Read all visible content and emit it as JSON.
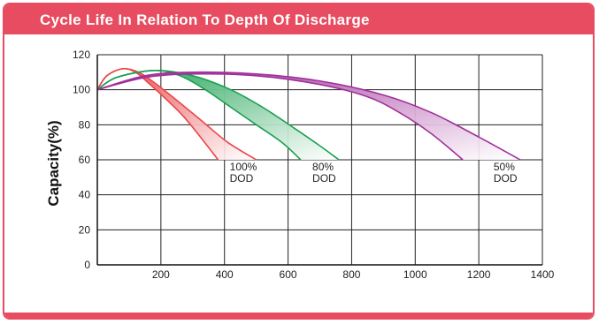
{
  "header": {
    "title": "Cycle Life In Relation To Depth Of Discharge"
  },
  "colors": {
    "accent": "#e74c60",
    "red": "#e8464a",
    "green": "#1aa050",
    "purple": "#a0309a"
  },
  "chart_data": {
    "type": "line",
    "title": "Cycle Life In Relation To Depth Of Discharge",
    "xlabel": "",
    "ylabel": "Capacity(%)",
    "xlim": [
      0,
      1400
    ],
    "ylim": [
      0,
      120
    ],
    "xticks": [
      "200",
      "400",
      "600",
      "800",
      "1000",
      "1200",
      "1400"
    ],
    "yticks": [
      "0",
      "20",
      "40",
      "60",
      "80",
      "100",
      "120"
    ],
    "grid": true,
    "series": [
      {
        "name": "100% DOD",
        "label_lines": [
          "100%",
          "DOD"
        ],
        "color": "#e8464a",
        "upper": [
          [
            0,
            100
          ],
          [
            30,
            108
          ],
          [
            80,
            112
          ],
          [
            130,
            110
          ],
          [
            180,
            104
          ],
          [
            250,
            94
          ],
          [
            330,
            82
          ],
          [
            410,
            70
          ],
          [
            500,
            60
          ]
        ],
        "lower": [
          [
            0,
            100
          ],
          [
            30,
            108
          ],
          [
            80,
            112
          ],
          [
            120,
            110
          ],
          [
            160,
            104
          ],
          [
            220,
            94
          ],
          [
            270,
            85
          ],
          [
            320,
            74
          ],
          [
            380,
            60
          ]
        ]
      },
      {
        "name": "80% DOD",
        "label_lines": [
          "80%",
          "DOD"
        ],
        "color": "#1aa050",
        "upper": [
          [
            0,
            100
          ],
          [
            60,
            107
          ],
          [
            180,
            111
          ],
          [
            300,
            108
          ],
          [
            420,
            100
          ],
          [
            520,
            90
          ],
          [
            620,
            78
          ],
          [
            700,
            68
          ],
          [
            760,
            60
          ]
        ],
        "lower": [
          [
            0,
            100
          ],
          [
            60,
            107
          ],
          [
            180,
            111
          ],
          [
            260,
            108
          ],
          [
            340,
            100
          ],
          [
            420,
            90
          ],
          [
            500,
            80
          ],
          [
            580,
            70
          ],
          [
            640,
            60
          ]
        ]
      },
      {
        "name": "50% DOD",
        "label_lines": [
          "50%",
          "DOD"
        ],
        "color": "#a0309a",
        "upper": [
          [
            0,
            100
          ],
          [
            150,
            108
          ],
          [
            300,
            110
          ],
          [
            500,
            109
          ],
          [
            700,
            105
          ],
          [
            900,
            97
          ],
          [
            1050,
            87
          ],
          [
            1200,
            73
          ],
          [
            1330,
            60
          ]
        ],
        "lower": [
          [
            0,
            100
          ],
          [
            150,
            107
          ],
          [
            300,
            109
          ],
          [
            500,
            108
          ],
          [
            700,
            103
          ],
          [
            850,
            96
          ],
          [
            950,
            87
          ],
          [
            1050,
            75
          ],
          [
            1150,
            60
          ]
        ]
      }
    ]
  }
}
